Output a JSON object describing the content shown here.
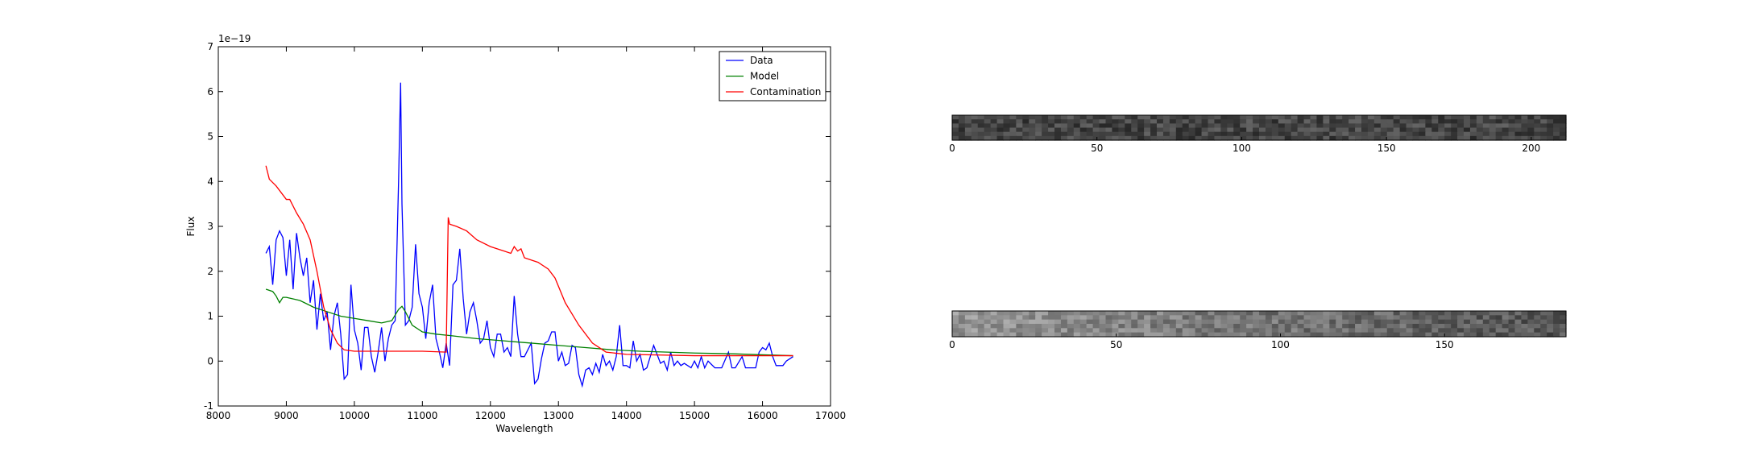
{
  "chart_data": [
    {
      "type": "line",
      "xlabel": "Wavelength",
      "ylabel": "Flux",
      "y_offset_label": "1e−19",
      "xlim": [
        8000,
        17000
      ],
      "xticks": [
        8000,
        9000,
        10000,
        11000,
        12000,
        13000,
        14000,
        15000,
        16000,
        17000
      ],
      "ylim": [
        -1,
        7
      ],
      "yticks": [
        -1,
        0,
        1,
        2,
        3,
        4,
        5,
        6,
        7
      ],
      "legend": "upper right",
      "series": [
        {
          "name": "Data",
          "color": "#0000ff",
          "x": [
            8700,
            8750,
            8800,
            8850,
            8900,
            8950,
            9000,
            9050,
            9100,
            9150,
            9200,
            9250,
            9300,
            9350,
            9400,
            9450,
            9500,
            9550,
            9600,
            9650,
            9700,
            9750,
            9800,
            9850,
            9900,
            9950,
            10000,
            10050,
            10100,
            10150,
            10200,
            10250,
            10300,
            10350,
            10400,
            10450,
            10500,
            10550,
            10600,
            10650,
            10680,
            10700,
            10750,
            10800,
            10850,
            10900,
            10950,
            11000,
            11050,
            11100,
            11150,
            11200,
            11250,
            11300,
            11350,
            11400,
            11450,
            11500,
            11550,
            11600,
            11650,
            11700,
            11750,
            11800,
            11850,
            11900,
            11950,
            12000,
            12050,
            12100,
            12150,
            12200,
            12250,
            12300,
            12350,
            12400,
            12450,
            12500,
            12550,
            12600,
            12650,
            12700,
            12750,
            12800,
            12850,
            12900,
            12950,
            13000,
            13050,
            13100,
            13150,
            13200,
            13250,
            13300,
            13350,
            13400,
            13450,
            13500,
            13550,
            13600,
            13650,
            13700,
            13750,
            13800,
            13850,
            13900,
            13950,
            14000,
            14050,
            14100,
            14150,
            14200,
            14250,
            14300,
            14350,
            14400,
            14450,
            14500,
            14550,
            14600,
            14650,
            14700,
            14750,
            14800,
            14850,
            14900,
            14950,
            15000,
            15050,
            15100,
            15150,
            15200,
            15300,
            15400,
            15500,
            15550,
            15600,
            15700,
            15750,
            15800,
            15900,
            15950,
            16000,
            16050,
            16100,
            16150,
            16200,
            16300,
            16350,
            16400,
            16450
          ],
          "values": [
            2.4,
            2.55,
            1.7,
            2.7,
            2.9,
            2.75,
            1.9,
            2.7,
            1.6,
            2.85,
            2.3,
            1.9,
            2.3,
            1.3,
            1.8,
            0.7,
            1.5,
            0.9,
            1.1,
            0.25,
            1.0,
            1.3,
            0.6,
            -0.4,
            -0.3,
            1.7,
            0.7,
            0.4,
            -0.2,
            0.75,
            0.75,
            0.1,
            -0.25,
            0.2,
            0.75,
            0.0,
            0.5,
            0.8,
            0.9,
            4.0,
            6.2,
            3.5,
            0.8,
            0.9,
            1.2,
            2.6,
            1.5,
            1.2,
            0.5,
            1.3,
            1.7,
            0.5,
            0.2,
            -0.15,
            0.4,
            -0.1,
            1.7,
            1.8,
            2.5,
            1.4,
            0.6,
            1.1,
            1.3,
            0.9,
            0.4,
            0.5,
            0.9,
            0.3,
            0.1,
            0.6,
            0.6,
            0.2,
            0.3,
            0.1,
            1.45,
            0.6,
            0.1,
            0.1,
            0.25,
            0.4,
            -0.5,
            -0.4,
            0.05,
            0.4,
            0.45,
            0.65,
            0.65,
            0.0,
            0.2,
            -0.1,
            -0.05,
            0.35,
            0.3,
            -0.3,
            -0.55,
            -0.2,
            -0.15,
            -0.3,
            -0.05,
            -0.25,
            0.15,
            -0.1,
            0.0,
            -0.2,
            0.1,
            0.8,
            -0.1,
            -0.1,
            -0.15,
            0.45,
            0.0,
            0.15,
            -0.2,
            -0.15,
            0.1,
            0.35,
            0.15,
            -0.05,
            0.0,
            -0.2,
            0.2,
            -0.1,
            0.0,
            -0.1,
            -0.05,
            -0.1,
            -0.15,
            0.0,
            -0.15,
            0.1,
            -0.15,
            0.0,
            -0.15,
            -0.15,
            0.2,
            -0.15,
            -0.15,
            0.1,
            -0.15,
            -0.15,
            -0.15,
            0.2,
            0.3,
            0.25,
            0.4,
            0.1,
            -0.1,
            -0.1,
            0.0,
            0.05,
            0.1
          ]
        },
        {
          "name": "Model",
          "color": "#008000",
          "x": [
            8700,
            8800,
            8850,
            8900,
            8950,
            9000,
            9200,
            9400,
            9600,
            9800,
            10000,
            10200,
            10400,
            10550,
            10650,
            10700,
            10750,
            10850,
            11000,
            11200,
            11400,
            11800,
            12200,
            12600,
            13000,
            13400,
            13800,
            14200,
            14600,
            15000,
            15600,
            16000,
            16450
          ],
          "values": [
            1.6,
            1.55,
            1.45,
            1.3,
            1.42,
            1.42,
            1.35,
            1.2,
            1.1,
            1.0,
            0.95,
            0.9,
            0.85,
            0.9,
            1.15,
            1.22,
            1.1,
            0.8,
            0.65,
            0.6,
            0.57,
            0.5,
            0.45,
            0.4,
            0.35,
            0.3,
            0.25,
            0.22,
            0.2,
            0.18,
            0.16,
            0.14,
            0.12
          ]
        },
        {
          "name": "Contamination",
          "color": "#ff0000",
          "x": [
            8700,
            8750,
            8850,
            9000,
            9050,
            9150,
            9250,
            9350,
            9450,
            9550,
            9650,
            9750,
            9850,
            10000,
            10500,
            11000,
            11350,
            11380,
            11400,
            11500,
            11650,
            11800,
            12000,
            12200,
            12300,
            12350,
            12400,
            12450,
            12500,
            12700,
            12850,
            12950,
            13100,
            13300,
            13500,
            13700,
            14000,
            15000,
            16450
          ],
          "values": [
            4.35,
            4.05,
            3.9,
            3.6,
            3.6,
            3.3,
            3.05,
            2.7,
            2.0,
            1.2,
            0.7,
            0.4,
            0.25,
            0.22,
            0.22,
            0.22,
            0.2,
            3.2,
            3.05,
            3.0,
            2.9,
            2.7,
            2.55,
            2.45,
            2.4,
            2.55,
            2.45,
            2.5,
            2.3,
            2.2,
            2.05,
            1.85,
            1.3,
            0.8,
            0.4,
            0.2,
            0.15,
            0.12,
            0.12
          ]
        }
      ]
    },
    {
      "type": "image",
      "xlim": [
        0,
        212
      ],
      "xticks": [
        0,
        50,
        100,
        150,
        200
      ]
    },
    {
      "type": "image",
      "xlim": [
        0,
        187
      ],
      "xticks": [
        0,
        50,
        100,
        150
      ]
    }
  ]
}
